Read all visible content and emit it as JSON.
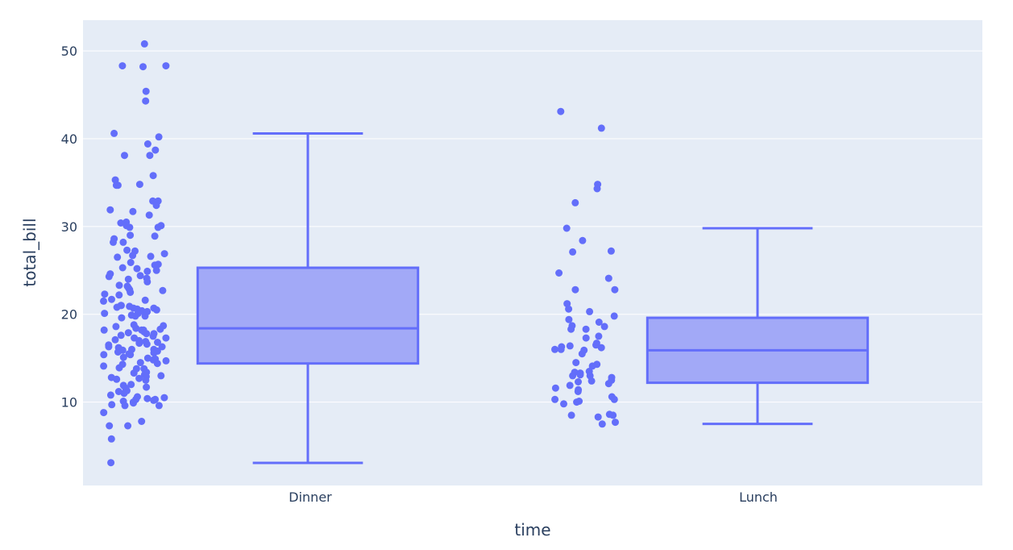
{
  "chart_data": {
    "type": "box",
    "xlabel": "time",
    "ylabel": "total_bill",
    "categories": [
      "Dinner",
      "Lunch"
    ],
    "yticks": [
      10,
      20,
      30,
      40,
      50
    ],
    "ylim": [
      0.5,
      53.5
    ],
    "grid": true,
    "colors": {
      "plot_bg": "#e5ecf6",
      "marker": "#636efa",
      "box_fill": "#a2a9f7",
      "grid": "#ffffff",
      "text": "#2a3f5f"
    },
    "boxes": [
      {
        "category": "Dinner",
        "lowerfence": 3.07,
        "q1": 14.4,
        "median": 18.4,
        "q3": 25.3,
        "upperfence": 40.6
      },
      {
        "category": "Lunch",
        "lowerfence": 7.51,
        "q1": 12.2,
        "median": 15.9,
        "q3": 19.6,
        "upperfence": 29.8
      }
    ],
    "points": [
      {
        "category": "Dinner",
        "values": [
          50.8,
          48.3,
          48.2,
          48.3,
          45.4,
          44.3,
          40.6,
          40.2,
          39.4,
          38.7,
          38.1,
          38.1,
          35.8,
          35.3,
          34.8,
          34.7,
          34.7,
          32.9,
          32.9,
          32.4,
          31.9,
          31.7,
          31.3,
          30.5,
          30.4,
          30.1,
          30.1,
          29.9,
          29.9,
          29.0,
          28.9,
          28.6,
          28.2,
          28.2,
          27.3,
          27.2,
          26.9,
          26.7,
          26.6,
          26.5,
          25.9,
          25.7,
          25.6,
          25.3,
          25.2,
          25.0,
          24.9,
          24.6,
          24.4,
          24.3,
          24.1,
          24.0,
          23.7,
          23.3,
          23.2,
          23.0,
          22.8,
          22.7,
          22.5,
          22.3,
          22.2,
          21.7,
          21.6,
          21.5,
          21.0,
          21.0,
          20.9,
          20.8,
          20.7,
          20.7,
          20.6,
          20.5,
          20.4,
          20.3,
          20.1,
          20.1,
          19.9,
          19.8,
          19.8,
          19.6,
          18.8,
          18.7,
          18.6,
          18.4,
          18.3,
          18.2,
          18.2,
          18.2,
          18.0,
          17.9,
          17.8,
          17.8,
          17.6,
          17.5,
          17.3,
          17.3,
          17.1,
          17.0,
          16.9,
          16.8,
          16.7,
          16.6,
          16.5,
          16.3,
          16.3,
          16.2,
          16.0,
          16.0,
          15.9,
          15.8,
          15.7,
          15.6,
          15.5,
          15.4,
          15.4,
          15.1,
          15.0,
          14.9,
          14.8,
          14.7,
          14.5,
          14.4,
          14.3,
          14.1,
          13.9,
          13.8,
          13.8,
          13.4,
          13.3,
          13.3,
          13.1,
          13.0,
          12.9,
          12.8,
          12.7,
          12.6,
          12.5,
          12.0,
          11.9,
          11.7,
          11.6,
          11.3,
          11.2,
          11.0,
          10.8,
          10.6,
          10.5,
          10.4,
          10.3,
          10.3,
          10.2,
          10.1,
          10.0,
          9.9,
          9.7,
          9.6,
          9.6,
          8.8,
          7.8,
          7.3,
          7.3,
          5.8,
          3.1
        ]
      },
      {
        "category": "Lunch",
        "values": [
          43.1,
          41.2,
          34.8,
          34.3,
          32.7,
          29.8,
          28.4,
          27.2,
          27.1,
          24.7,
          24.1,
          22.8,
          22.8,
          21.2,
          20.6,
          20.3,
          19.8,
          19.4,
          19.1,
          18.7,
          18.6,
          18.3,
          18.3,
          17.5,
          17.3,
          16.7,
          16.5,
          16.4,
          16.3,
          16.2,
          16.0,
          16.0,
          15.9,
          15.5,
          14.5,
          14.3,
          14.1,
          13.5,
          13.4,
          13.3,
          13.1,
          13.0,
          13.0,
          12.8,
          12.5,
          12.4,
          12.3,
          12.1,
          11.9,
          11.6,
          11.4,
          11.2,
          10.6,
          10.3,
          10.3,
          10.1,
          10.0,
          9.8,
          8.6,
          8.5,
          8.5,
          8.3,
          7.7,
          7.5
        ]
      }
    ]
  }
}
